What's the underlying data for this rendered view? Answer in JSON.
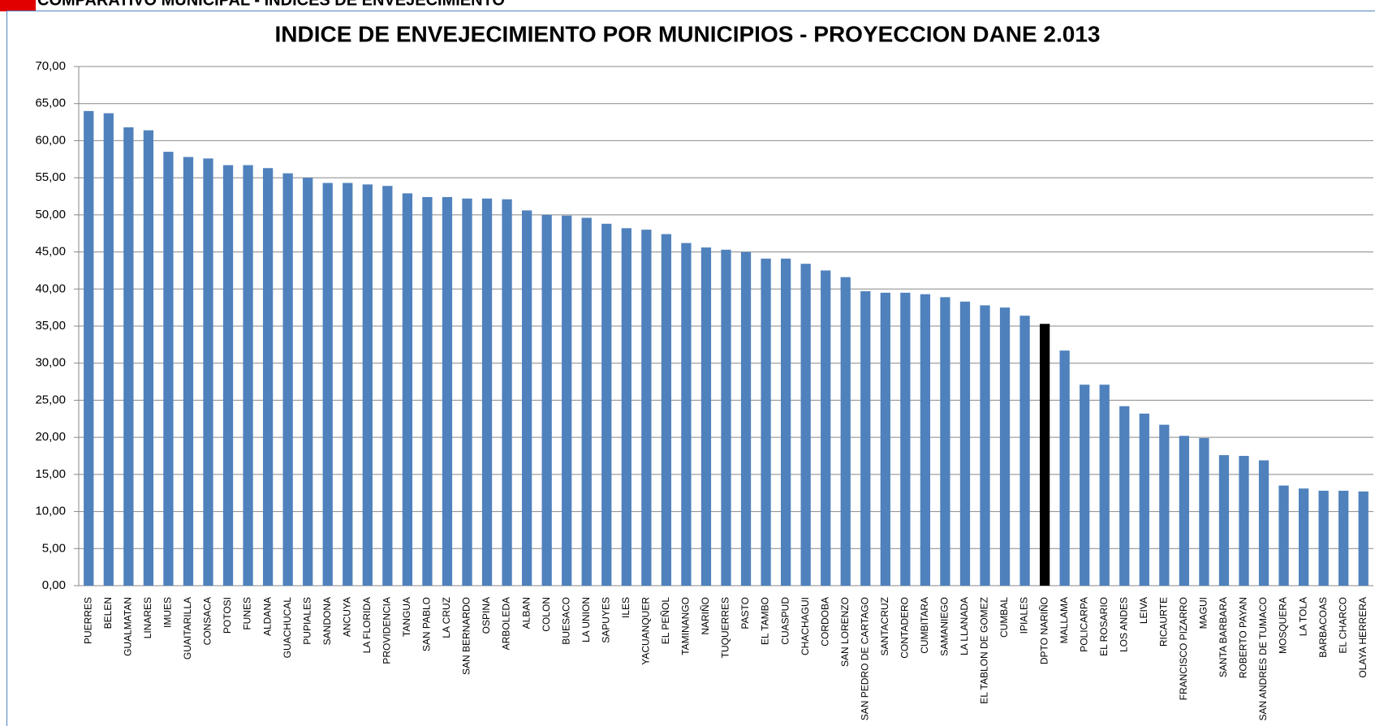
{
  "header": "COMPARATIVO MUNICIPAL - INDICES DE ENVEJECIMIENTO",
  "chart_data": {
    "type": "bar",
    "title": "INDICE DE ENVEJECIMIENTO POR MUNICIPIOS - PROYECCION DANE 2.013",
    "categories": [
      "PUERRES",
      "BELEN",
      "GUALMATAN",
      "LINARES",
      "IMUES",
      "GUAITARILLA",
      "CONSACA",
      "POTOSI",
      "FUNES",
      "ALDANA",
      "GUACHUCAL",
      "PUPIALES",
      "SANDONA",
      "ANCUYA",
      "LA FLORIDA",
      "PROVIDENCIA",
      "TANGUA",
      "SAN PABLO",
      "LA CRUZ",
      "SAN BERNARDO",
      "OSPINA",
      "ARBOLEDA",
      "ALBAN",
      "COLON",
      "BUESACO",
      "LA UNION",
      "SAPUYES",
      "ILES",
      "YACUANQUER",
      "EL PEÑOL",
      "TAMINANGO",
      "NARIÑO",
      "TUQUERRES",
      "PASTO",
      "EL TAMBO",
      "CUASPUD",
      "CHACHAGUI",
      "CORDOBA",
      "SAN LORENZO",
      "SAN PEDRO DE CARTAGO",
      "SANTACRUZ",
      "CONTADERO",
      "CUMBITARA",
      "SAMANIEGO",
      "LA LLANADA",
      "EL TABLON DE GOMEZ",
      "CUMBAL",
      "IPIALES",
      "DPTO NARIÑO",
      "MALLAMA",
      "POLICARPA",
      "EL ROSARIO",
      "LOS ANDES",
      "LEIVA",
      "RICAURTE",
      "FRANCISCO PIZARRO",
      "MAGUI",
      "SANTA BARBARA",
      "ROBERTO PAYAN",
      "SAN ANDRES DE TUMACO",
      "MOSQUERA",
      "LA TOLA",
      "BARBACOAS",
      "EL CHARCO",
      "OLAYA HERRERA"
    ],
    "values": [
      64.0,
      63.7,
      61.8,
      61.4,
      58.5,
      57.8,
      57.6,
      56.7,
      56.7,
      56.3,
      55.6,
      55.0,
      54.3,
      54.3,
      54.1,
      53.9,
      52.9,
      52.4,
      52.4,
      52.2,
      52.2,
      52.1,
      50.6,
      50.0,
      49.9,
      49.6,
      48.8,
      48.2,
      48.0,
      47.4,
      46.2,
      45.6,
      45.3,
      45.0,
      44.1,
      44.1,
      43.4,
      42.5,
      41.6,
      39.7,
      39.5,
      39.5,
      39.3,
      38.9,
      38.3,
      37.8,
      37.5,
      36.4,
      35.3,
      31.7,
      27.1,
      27.1,
      24.2,
      23.2,
      21.7,
      20.2,
      19.9,
      17.6,
      17.5,
      16.9,
      13.5,
      13.1,
      12.8,
      12.8,
      12.7
    ],
    "colors": [
      "#4f81bd",
      "#4f81bd",
      "#4f81bd",
      "#4f81bd",
      "#4f81bd",
      "#4f81bd",
      "#4f81bd",
      "#4f81bd",
      "#4f81bd",
      "#4f81bd",
      "#4f81bd",
      "#4f81bd",
      "#4f81bd",
      "#4f81bd",
      "#4f81bd",
      "#4f81bd",
      "#4f81bd",
      "#4f81bd",
      "#4f81bd",
      "#4f81bd",
      "#4f81bd",
      "#4f81bd",
      "#4f81bd",
      "#4f81bd",
      "#4f81bd",
      "#4f81bd",
      "#4f81bd",
      "#4f81bd",
      "#4f81bd",
      "#4f81bd",
      "#4f81bd",
      "#4f81bd",
      "#4f81bd",
      "#4f81bd",
      "#4f81bd",
      "#4f81bd",
      "#4f81bd",
      "#4f81bd",
      "#4f81bd",
      "#4f81bd",
      "#4f81bd",
      "#4f81bd",
      "#4f81bd",
      "#4f81bd",
      "#4f81bd",
      "#4f81bd",
      "#4f81bd",
      "#4f81bd",
      "#000000",
      "#4f81bd",
      "#4f81bd",
      "#4f81bd",
      "#4f81bd",
      "#4f81bd",
      "#4f81bd",
      "#4f81bd",
      "#4f81bd",
      "#4f81bd",
      "#4f81bd",
      "#4f81bd",
      "#4f81bd",
      "#4f81bd",
      "#4f81bd",
      "#4f81bd",
      "#4f81bd"
    ],
    "ylim": [
      0,
      70
    ],
    "yticks": [
      {
        "value": 0,
        "label": "0,00"
      },
      {
        "value": 5,
        "label": "5,00"
      },
      {
        "value": 10,
        "label": "10,00"
      },
      {
        "value": 15,
        "label": "15,00"
      },
      {
        "value": 20,
        "label": "20,00"
      },
      {
        "value": 25,
        "label": "25,00"
      },
      {
        "value": 30,
        "label": "30,00"
      },
      {
        "value": 35,
        "label": "35,00"
      },
      {
        "value": 40,
        "label": "40,00"
      },
      {
        "value": 45,
        "label": "45,00"
      },
      {
        "value": 50,
        "label": "50,00"
      },
      {
        "value": 55,
        "label": "55,00"
      },
      {
        "value": 60,
        "label": "60,00"
      },
      {
        "value": 65,
        "label": "65,00"
      },
      {
        "value": 70,
        "label": "70,00"
      }
    ],
    "grid": true
  }
}
